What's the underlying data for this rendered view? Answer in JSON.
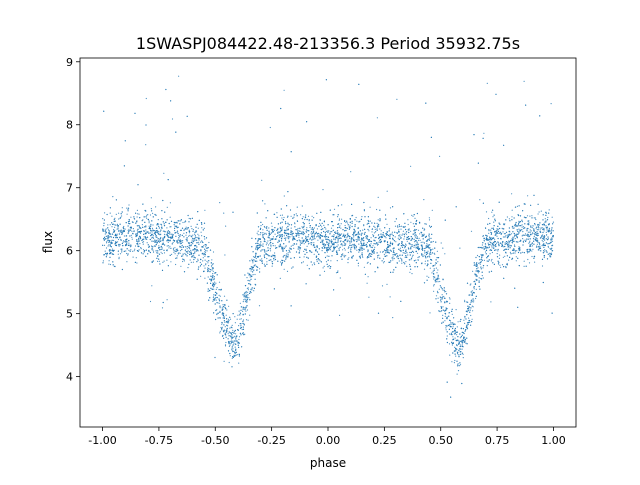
{
  "chart_data": {
    "type": "scatter",
    "title": "1SWASPJ084422.48-213356.3 Period 35932.75s",
    "xlabel": "phase",
    "ylabel": "flux",
    "xlim": [
      -1.1,
      1.1
    ],
    "ylim": [
      3.2,
      9.06
    ],
    "xticks": [
      "-1.00",
      "-0.75",
      "-0.50",
      "-0.25",
      "0.00",
      "0.25",
      "0.50",
      "0.75",
      "1.00"
    ],
    "yticks": [
      "4",
      "5",
      "6",
      "7",
      "8",
      "9"
    ],
    "grid": false,
    "point_color": "#1f77b4",
    "binned_mean_flux": {
      "phase": [
        -1.0,
        -0.9,
        -0.8,
        -0.7,
        -0.6,
        -0.55,
        -0.52,
        -0.5,
        -0.47,
        -0.45,
        -0.42,
        -0.4,
        -0.38,
        -0.35,
        -0.32,
        -0.3,
        -0.2,
        -0.1,
        0.0,
        0.1,
        0.2,
        0.3,
        0.4,
        0.45,
        0.48,
        0.5,
        0.53,
        0.55,
        0.58,
        0.6,
        0.62,
        0.65,
        0.68,
        0.7,
        0.8,
        0.9,
        1.0
      ],
      "flux": [
        6.2,
        6.22,
        6.25,
        6.2,
        6.15,
        6.05,
        5.65,
        5.3,
        5.0,
        4.75,
        4.45,
        4.6,
        4.95,
        5.45,
        5.9,
        6.1,
        6.2,
        6.2,
        6.15,
        6.18,
        6.15,
        6.12,
        6.1,
        6.05,
        5.65,
        5.3,
        5.0,
        4.75,
        4.45,
        4.6,
        4.95,
        5.45,
        5.9,
        6.1,
        6.2,
        6.22,
        6.2
      ]
    },
    "scatter_sigma": 0.2
  }
}
